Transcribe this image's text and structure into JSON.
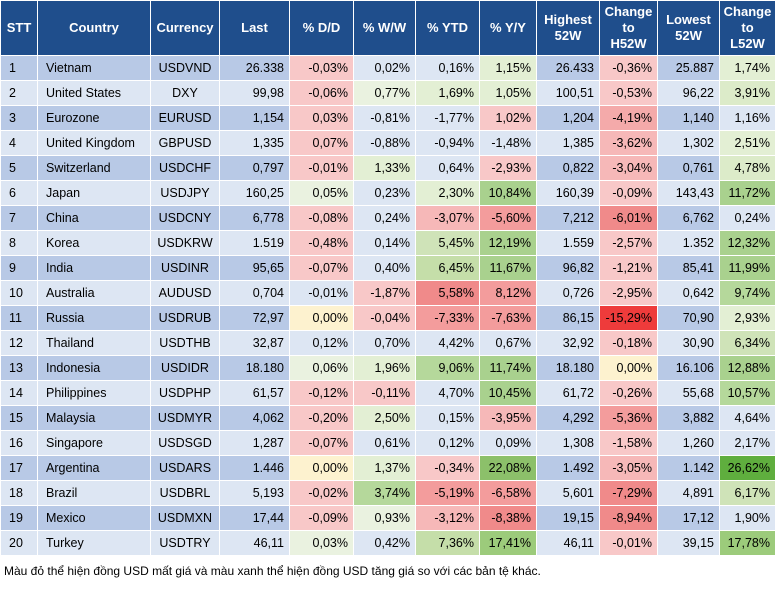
{
  "headers": [
    "STT",
    "Country",
    "Currency",
    "Last",
    "% D/D",
    "% W/W",
    "% YTD",
    "% Y/Y",
    "Highest 52W",
    "Change to H52W",
    "Lowest 52W",
    "Change to L52W"
  ],
  "rows": [
    {
      "stt": "1",
      "country": "Vietnam",
      "currency": "USDVND",
      "last": "26.338",
      "dd": "-0,03%",
      "ww": "0,02%",
      "ytd": "0,16%",
      "yy": "1,15%",
      "h52": "26.433",
      "ch52": "-0,36%",
      "l52": "25.887",
      "cl52": "1,74%",
      "colors": {
        "dd": "#f8c8c8",
        "ww": "#dde6f3",
        "ytd": "#dde6f3",
        "yy": "#e3efd4",
        "ch52": "#f8c8c8",
        "cl52": "#e3efd4"
      }
    },
    {
      "stt": "2",
      "country": "United States",
      "currency": "DXY",
      "last": "99,98",
      "dd": "-0,06%",
      "ww": "0,77%",
      "ytd": "1,69%",
      "yy": "1,05%",
      "h52": "100,51",
      "ch52": "-0,53%",
      "l52": "96,22",
      "cl52": "3,91%",
      "colors": {
        "dd": "#f8c8c8",
        "ww": "#eaf2e0",
        "ytd": "#e3efd4",
        "yy": "#e3efd4",
        "ch52": "#f8c8c8",
        "cl52": "#dcebc9"
      }
    },
    {
      "stt": "3",
      "country": "Eurozone",
      "currency": "EURUSD",
      "last": "1,154",
      "dd": "0,03%",
      "ww": "-0,81%",
      "ytd": "-1,77%",
      "yy": "1,02%",
      "h52": "1,204",
      "ch52": "-4,19%",
      "l52": "1,140",
      "cl52": "1,16%",
      "colors": {
        "dd": "#f8c8c8",
        "ww": "#dde6f3",
        "ytd": "#dde6f3",
        "yy": "#f8c8c8",
        "ch52": "#f4aaaa",
        "cl52": "#dde6f3"
      }
    },
    {
      "stt": "4",
      "country": "United Kingdom",
      "currency": "GBPUSD",
      "last": "1,335",
      "dd": "0,07%",
      "ww": "-0,88%",
      "ytd": "-0,94%",
      "yy": "-1,48%",
      "h52": "1,385",
      "ch52": "-3,62%",
      "l52": "1,302",
      "cl52": "2,51%",
      "colors": {
        "dd": "#f8c8c8",
        "ww": "#dde6f3",
        "ytd": "#dde6f3",
        "yy": "#dde6f3",
        "ch52": "#f6b8b8",
        "cl52": "#e3efd4"
      }
    },
    {
      "stt": "5",
      "country": "Switzerland",
      "currency": "USDCHF",
      "last": "0,797",
      "dd": "-0,01%",
      "ww": "1,33%",
      "ytd": "0,64%",
      "yy": "-2,93%",
      "h52": "0,822",
      "ch52": "-3,04%",
      "l52": "0,761",
      "cl52": "4,78%",
      "colors": {
        "dd": "#f8c8c8",
        "ww": "#e3efd4",
        "ytd": "#dde6f3",
        "yy": "#f8c8c8",
        "ch52": "#f6b8b8",
        "cl52": "#dcebc9"
      }
    },
    {
      "stt": "6",
      "country": "Japan",
      "currency": "USDJPY",
      "last": "160,25",
      "dd": "0,05%",
      "ww": "0,23%",
      "ytd": "2,30%",
      "yy": "10,84%",
      "h52": "160,39",
      "ch52": "-0,09%",
      "l52": "143,43",
      "cl52": "11,72%",
      "colors": {
        "dd": "#eaf2e0",
        "ww": "#dde6f3",
        "ytd": "#e3efd4",
        "yy": "#a9d18e",
        "ch52": "#f8c8c8",
        "cl52": "#a9d18e"
      }
    },
    {
      "stt": "7",
      "country": "China",
      "currency": "USDCNY",
      "last": "6,778",
      "dd": "-0,08%",
      "ww": "0,24%",
      "ytd": "-3,07%",
      "yy": "-5,60%",
      "h52": "7,212",
      "ch52": "-6,01%",
      "l52": "6,762",
      "cl52": "0,24%",
      "colors": {
        "dd": "#f8c8c8",
        "ww": "#dde6f3",
        "ytd": "#f6b8b8",
        "yy": "#f39c9c",
        "ch52": "#f08a8a",
        "cl52": "#dde6f3"
      }
    },
    {
      "stt": "8",
      "country": "Korea",
      "currency": "USDKRW",
      "last": "1.519",
      "dd": "-0,48%",
      "ww": "0,14%",
      "ytd": "5,45%",
      "yy": "12,19%",
      "h52": "1.559",
      "ch52": "-2,57%",
      "l52": "1.352",
      "cl52": "12,32%",
      "colors": {
        "dd": "#f8c8c8",
        "ww": "#dde6f3",
        "ytd": "#cfe3b8",
        "yy": "#a9d18e",
        "ch52": "#f8c8c8",
        "cl52": "#a9d18e"
      }
    },
    {
      "stt": "9",
      "country": "India",
      "currency": "USDINR",
      "last": "95,65",
      "dd": "-0,07%",
      "ww": "0,40%",
      "ytd": "6,45%",
      "yy": "11,67%",
      "h52": "96,82",
      "ch52": "-1,21%",
      "l52": "85,41",
      "cl52": "11,99%",
      "colors": {
        "dd": "#f8c8c8",
        "ww": "#dde6f3",
        "ytd": "#c5dea9",
        "yy": "#a9d18e",
        "ch52": "#f8c8c8",
        "cl52": "#a9d18e"
      }
    },
    {
      "stt": "10",
      "country": "Australia",
      "currency": "AUDUSD",
      "last": "0,704",
      "dd": "-0,01%",
      "ww": "-1,87%",
      "ytd": "5,58%",
      "yy": "8,12%",
      "h52": "0,726",
      "ch52": "-2,95%",
      "l52": "0,642",
      "cl52": "9,74%",
      "colors": {
        "dd": "#dde6f3",
        "ww": "#f8c8c8",
        "ytd": "#f08a8a",
        "yy": "#f39c9c",
        "ch52": "#f8c8c8",
        "cl52": "#b5d89b"
      }
    },
    {
      "stt": "11",
      "country": "Russia",
      "currency": "USDRUB",
      "last": "72,97",
      "dd": "0,00%",
      "ww": "-0,04%",
      "ytd": "-7,33%",
      "yy": "-7,63%",
      "h52": "86,15",
      "ch52": "-15,29%",
      "l52": "70,90",
      "cl52": "2,93%",
      "colors": {
        "dd": "#fdf2cf",
        "ww": "#f8c8c8",
        "ytd": "#f39c9c",
        "yy": "#f39c9c",
        "ch52": "#ee3b3b",
        "cl52": "#e3efd4"
      }
    },
    {
      "stt": "12",
      "country": "Thailand",
      "currency": "USDTHB",
      "last": "32,87",
      "dd": "0,12%",
      "ww": "0,70%",
      "ytd": "4,42%",
      "yy": "0,67%",
      "h52": "32,92",
      "ch52": "-0,18%",
      "l52": "30,90",
      "cl52": "6,34%",
      "colors": {
        "dd": "#dde6f3",
        "ww": "#dde6f3",
        "ytd": "#dde6f3",
        "yy": "#dde6f3",
        "ch52": "#f8c8c8",
        "cl52": "#cfe3b8"
      }
    },
    {
      "stt": "13",
      "country": "Indonesia",
      "currency": "USDIDR",
      "last": "18.180",
      "dd": "0,06%",
      "ww": "1,96%",
      "ytd": "9,06%",
      "yy": "11,74%",
      "h52": "18.180",
      "ch52": "0,00%",
      "l52": "16.106",
      "cl52": "12,88%",
      "colors": {
        "dd": "#eaf2e0",
        "ww": "#e3efd4",
        "ytd": "#b5d89b",
        "yy": "#a9d18e",
        "ch52": "#fdf2cf",
        "cl52": "#a9d18e"
      }
    },
    {
      "stt": "14",
      "country": "Philippines",
      "currency": "USDPHP",
      "last": "61,57",
      "dd": "-0,12%",
      "ww": "-0,11%",
      "ytd": "4,70%",
      "yy": "10,45%",
      "h52": "61,72",
      "ch52": "-0,26%",
      "l52": "55,68",
      "cl52": "10,57%",
      "colors": {
        "dd": "#f8c8c8",
        "ww": "#f8c8c8",
        "ytd": "#dde6f3",
        "yy": "#a9d18e",
        "ch52": "#f8c8c8",
        "cl52": "#b5d89b"
      }
    },
    {
      "stt": "15",
      "country": "Malaysia",
      "currency": "USDMYR",
      "last": "4,062",
      "dd": "-0,20%",
      "ww": "2,50%",
      "ytd": "0,15%",
      "yy": "-3,95%",
      "h52": "4,292",
      "ch52": "-5,36%",
      "l52": "3,882",
      "cl52": "4,64%",
      "colors": {
        "dd": "#f8c8c8",
        "ww": "#e3efd4",
        "ytd": "#dde6f3",
        "yy": "#f6b8b8",
        "ch52": "#f39c9c",
        "cl52": "#dde6f3"
      }
    },
    {
      "stt": "16",
      "country": "Singapore",
      "currency": "USDSGD",
      "last": "1,287",
      "dd": "-0,07%",
      "ww": "0,61%",
      "ytd": "0,12%",
      "yy": "0,09%",
      "h52": "1,308",
      "ch52": "-1,58%",
      "l52": "1,260",
      "cl52": "2,17%",
      "colors": {
        "dd": "#f8c8c8",
        "ww": "#dde6f3",
        "ytd": "#dde6f3",
        "yy": "#dde6f3",
        "ch52": "#f8c8c8",
        "cl52": "#dde6f3"
      }
    },
    {
      "stt": "17",
      "country": "Argentina",
      "currency": "USDARS",
      "last": "1.446",
      "dd": "0,00%",
      "ww": "1,37%",
      "ytd": "-0,34%",
      "yy": "22,08%",
      "h52": "1.492",
      "ch52": "-3,05%",
      "l52": "1.142",
      "cl52": "26,62%",
      "colors": {
        "dd": "#fdf2cf",
        "ww": "#e3efd4",
        "ytd": "#f8c8c8",
        "yy": "#8cc06a",
        "ch52": "#f6b8b8",
        "cl52": "#5fae3e"
      }
    },
    {
      "stt": "18",
      "country": "Brazil",
      "currency": "USDBRL",
      "last": "5,193",
      "dd": "-0,02%",
      "ww": "3,74%",
      "ytd": "-5,19%",
      "yy": "-6,58%",
      "h52": "5,601",
      "ch52": "-7,29%",
      "l52": "4,891",
      "cl52": "6,17%",
      "colors": {
        "dd": "#f8c8c8",
        "ww": "#b5d89b",
        "ytd": "#f39c9c",
        "yy": "#f39c9c",
        "ch52": "#f08a8a",
        "cl52": "#cfe3b8"
      }
    },
    {
      "stt": "19",
      "country": "Mexico",
      "currency": "USDMXN",
      "last": "17,44",
      "dd": "-0,09%",
      "ww": "0,93%",
      "ytd": "-3,12%",
      "yy": "-8,38%",
      "h52": "19,15",
      "ch52": "-8,94%",
      "l52": "17,12",
      "cl52": "1,90%",
      "colors": {
        "dd": "#f8c8c8",
        "ww": "#eaf2e0",
        "ytd": "#f6b8b8",
        "yy": "#f08a8a",
        "ch52": "#f08a8a",
        "cl52": "#dde6f3"
      }
    },
    {
      "stt": "20",
      "country": "Turkey",
      "currency": "USDTRY",
      "last": "46,11",
      "dd": "0,03%",
      "ww": "0,42%",
      "ytd": "7,36%",
      "yy": "17,41%",
      "h52": "46,11",
      "ch52": "-0,01%",
      "l52": "39,15",
      "cl52": "17,78%",
      "colors": {
        "dd": "#eaf2e0",
        "ww": "#dde6f3",
        "ytd": "#c5dea9",
        "yy": "#9ccb7b",
        "ch52": "#f8c8c8",
        "cl52": "#9ccb7b"
      }
    }
  ],
  "note": "Màu đỏ thể hiện đồng USD mất giá và màu xanh thể hiện đồng USD tăng giá so với các bản tệ khác."
}
